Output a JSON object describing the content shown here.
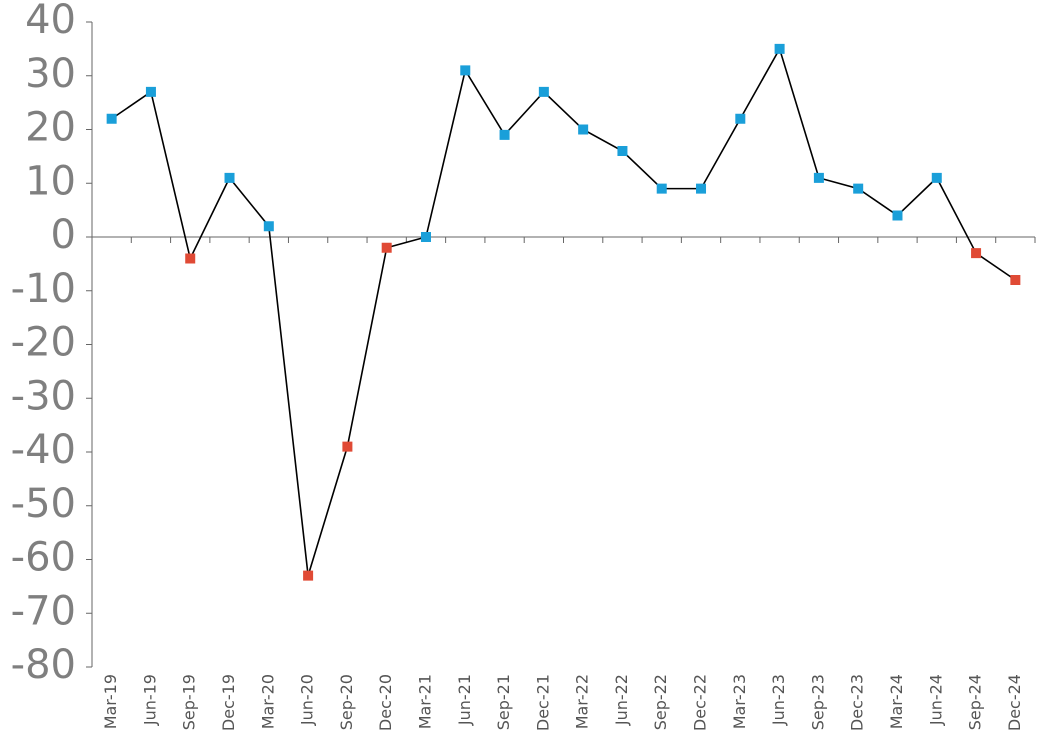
{
  "chart_data": {
    "type": "line",
    "categories": [
      "Mar-19",
      "Jun-19",
      "Sep-19",
      "Dec-19",
      "Mar-20",
      "Jun-20",
      "Sep-20",
      "Dec-20",
      "Mar-21",
      "Jun-21",
      "Sep-21",
      "Dec-21",
      "Mar-22",
      "Jun-22",
      "Sep-22",
      "Dec-22",
      "Mar-23",
      "Jun-23",
      "Sep-23",
      "Dec-23",
      "Mar-24",
      "Jun-24",
      "Sep-24",
      "Dec-24"
    ],
    "values": [
      22,
      27,
      -4,
      11,
      2,
      -63,
      -39,
      -2,
      0,
      31,
      19,
      27,
      20,
      16,
      9,
      9,
      22,
      35,
      11,
      9,
      4,
      11,
      -3,
      -8
    ],
    "line_color": "#000000",
    "positive_color": "#1a9fd9",
    "negative_color": "#e04a35",
    "ylim": [
      -80,
      40
    ],
    "yticks": [
      -80,
      -70,
      -60,
      -50,
      -40,
      -30,
      -20,
      -10,
      0,
      10,
      20,
      30,
      40
    ],
    "grid": false
  }
}
